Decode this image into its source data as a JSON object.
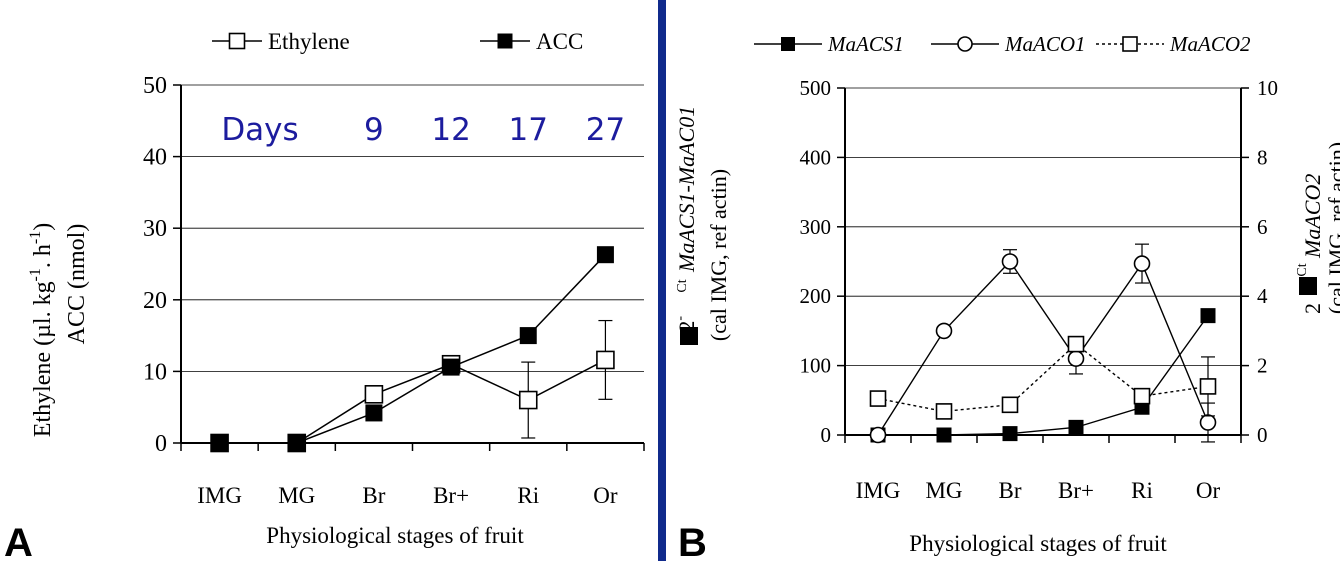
{
  "colors": {
    "frame": "#102a8c",
    "days_text": "#1c1c9e",
    "series": "#000000"
  },
  "chart_data": [
    {
      "panel_label": "A",
      "type": "line",
      "categories": [
        "IMG",
        "MG",
        "Br",
        "Br+",
        "Ri",
        "Or"
      ],
      "xlabel": "Physiological stages of fruit",
      "ylabel_lines": [
        "Ethylene (µl. kg",
        "ACC (nmol)"
      ],
      "ylabel_sup_1": "-1",
      "ylabel_mid": ". h",
      "ylabel_sup_2": "-1",
      "ylabel_end": ")",
      "ylim": [
        0,
        50
      ],
      "yticks": [
        "0",
        "10",
        "20",
        "30",
        "40",
        "50"
      ],
      "grid": true,
      "legend_placement": "top",
      "days_label": "Days",
      "days_values": [
        {
          "category": "Br",
          "label": "9"
        },
        {
          "category": "Br+",
          "label": "12"
        },
        {
          "category": "Ri",
          "label": "17"
        },
        {
          "category": "Or",
          "label": "27"
        }
      ],
      "series": [
        {
          "name": "Ethylene",
          "marker": "open-square",
          "values": [
            0,
            0,
            6.8,
            11,
            6,
            11.6
          ],
          "error": [
            0,
            0,
            0,
            0,
            5.3,
            5.5
          ]
        },
        {
          "name": "ACC",
          "marker": "filled-square",
          "values": [
            0,
            0,
            4.2,
            10.6,
            15,
            26.3
          ],
          "error": [
            0,
            0,
            0,
            0,
            0,
            0
          ]
        }
      ]
    },
    {
      "panel_label": "B",
      "type": "line",
      "categories": [
        "IMG",
        "MG",
        "Br",
        "Br+",
        "Ri",
        "Or"
      ],
      "xlabel": "Physiological stages of fruit",
      "ylabel_left": {
        "prefix": "2",
        "sup": "-",
        "sup2": "Ct",
        "gene": "MaACS1-MaAC01",
        "line2": "(cal IMG, ref actin)"
      },
      "ylabel_right": {
        "prefix": "2",
        "sup": "-",
        "sup2": "Ct",
        "gene": "MaACO2",
        "line2": "(cal IMG, ref actin)"
      },
      "ylim_left": [
        0,
        500
      ],
      "ylim_right": [
        0,
        10
      ],
      "yticks_left": [
        "0",
        "100",
        "200",
        "300",
        "400",
        "500"
      ],
      "yticks_right": [
        "0",
        "2",
        "4",
        "6",
        "8",
        "10"
      ],
      "grid": true,
      "legend_placement": "top",
      "series": [
        {
          "name": "MaACS1",
          "axis": "left",
          "marker": "filled-square",
          "line": "solid",
          "values": [
            0,
            0,
            2,
            11,
            40,
            172
          ],
          "error": [
            0,
            0,
            0,
            0,
            0,
            0
          ]
        },
        {
          "name": "MaACO1",
          "axis": "left",
          "marker": "open-circle",
          "line": "solid",
          "values": [
            0,
            150,
            250,
            110,
            247,
            18
          ],
          "error": [
            0,
            0,
            17,
            22,
            28,
            28
          ]
        },
        {
          "name": "MaACO2",
          "axis": "right",
          "marker": "open-square",
          "line": "dotted",
          "values": [
            1.05,
            0.68,
            0.87,
            2.62,
            1.12,
            1.4
          ],
          "error": [
            0.15,
            0.1,
            0,
            0.1,
            0.1,
            0.85
          ]
        }
      ]
    }
  ]
}
